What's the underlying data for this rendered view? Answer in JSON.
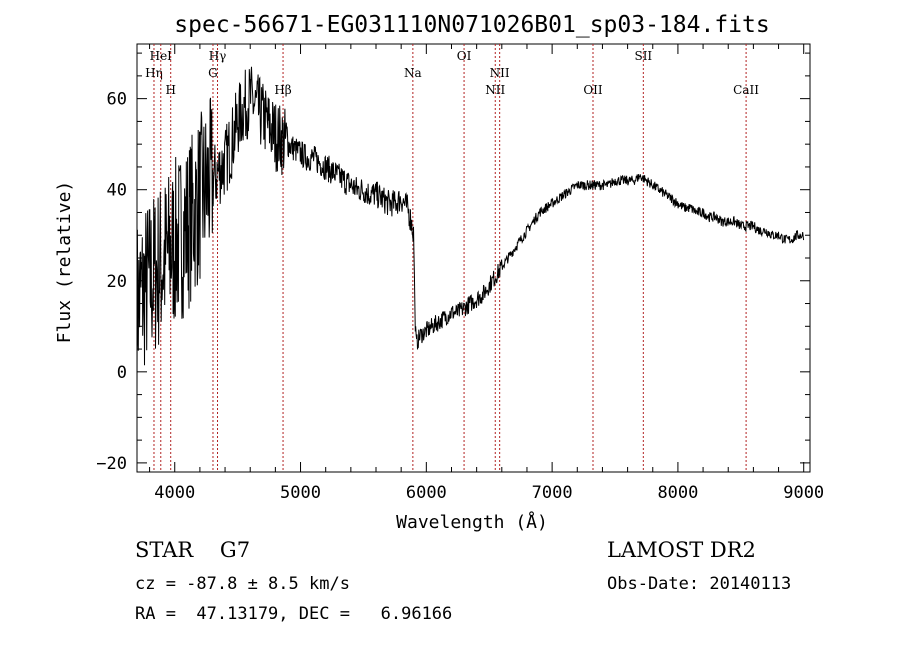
{
  "chart_data": {
    "type": "line",
    "title": "spec-56671-EG031110N071026B01_sp03-184.fits",
    "xlabel": "Wavelength (Å)",
    "ylabel": "Flux (relative)",
    "xlim": [
      3700,
      9050
    ],
    "ylim": [
      -22,
      72
    ],
    "xticks": [
      4000,
      5000,
      6000,
      7000,
      8000,
      9000
    ],
    "yticks": [
      -20,
      0,
      20,
      40,
      60
    ],
    "grid": false,
    "series": [
      {
        "x": [
          3700,
          3750,
          3800,
          3850,
          3900,
          3950,
          4000,
          4050,
          4100,
          4150,
          4200,
          4250,
          4300,
          4350,
          4400,
          4450,
          4500,
          4550,
          4600,
          4650,
          4700,
          4750,
          4800,
          4850,
          4900,
          4950,
          5000,
          5050,
          5100,
          5150,
          5200,
          5250,
          5300,
          5350,
          5400,
          5450,
          5500,
          5550,
          5600,
          5650,
          5700,
          5750,
          5800,
          5850,
          5880,
          5900,
          5910,
          5920,
          5950,
          6000,
          6050,
          6100,
          6150,
          6200,
          6250,
          6300,
          6350,
          6400,
          6450,
          6500,
          6550,
          6600,
          6650,
          6700,
          6750,
          6800,
          6850,
          6900,
          6950,
          7000,
          7050,
          7100,
          7150,
          7200,
          7250,
          7300,
          7350,
          7400,
          7450,
          7500,
          7550,
          7600,
          7650,
          7700,
          7750,
          7800,
          7850,
          7900,
          7950,
          8000,
          8050,
          8100,
          8150,
          8200,
          8250,
          8300,
          8350,
          8400,
          8450,
          8500,
          8550,
          8600,
          8650,
          8700,
          8750,
          8800,
          8850,
          8900,
          8950,
          9000
        ],
        "values": [
          15,
          18,
          20,
          22,
          24,
          26,
          28,
          30,
          32,
          35,
          38,
          40,
          42,
          44,
          46,
          50,
          55,
          58,
          60,
          58,
          56,
          54,
          52,
          51,
          50,
          49,
          48,
          47,
          47,
          46,
          45,
          44,
          43,
          42,
          41,
          40,
          40,
          39,
          39,
          38,
          37,
          37,
          38,
          36,
          33,
          30,
          12,
          6,
          8,
          9,
          10,
          11,
          12,
          13,
          13,
          14,
          15,
          16,
          17,
          19,
          21,
          23,
          25,
          27,
          29,
          31,
          33,
          35,
          36,
          37,
          38,
          39,
          40,
          41,
          41,
          41,
          41,
          41,
          41,
          42,
          42,
          42,
          42,
          43,
          42,
          41,
          40,
          39,
          38,
          37,
          36,
          36,
          35,
          35,
          34,
          34,
          33,
          33,
          33,
          32,
          32,
          32,
          31,
          31,
          30,
          30,
          29,
          29,
          30,
          30
        ]
      }
    ],
    "lines": [
      {
        "name": "Hη",
        "x": 3835,
        "row": 2
      },
      {
        "name": "HeI",
        "x": 3889,
        "row": 1
      },
      {
        "name": "H",
        "x": 3968,
        "row": 3
      },
      {
        "name": "Hγ",
        "x": 4340,
        "row": 1
      },
      {
        "name": "G",
        "x": 4304,
        "row": 2
      },
      {
        "name": "Hβ",
        "x": 4861,
        "row": 3
      },
      {
        "name": "Na",
        "x": 5893,
        "row": 2
      },
      {
        "name": "OI",
        "x": 6300,
        "row": 1
      },
      {
        "name": "NII",
        "x": 6548,
        "row": 3
      },
      {
        "name": "NII",
        "x": 6583,
        "row": 2
      },
      {
        "name": "OII",
        "x": 7325,
        "row": 3
      },
      {
        "name": "SII",
        "x": 7725,
        "row": 1
      },
      {
        "name": "CaII",
        "x": 8542,
        "row": 3
      }
    ]
  },
  "footer": {
    "object_class": "STAR    G7",
    "survey": "LAMOST DR2",
    "cz": "cz = -87.8 ± 8.5 km/s",
    "obs_date": "Obs-Date: 20140113",
    "coords": "RA =  47.13179, DEC =   6.96166"
  },
  "colors": {
    "line_markers": "#b22222",
    "spectrum": "#000000",
    "axis": "#000000"
  }
}
